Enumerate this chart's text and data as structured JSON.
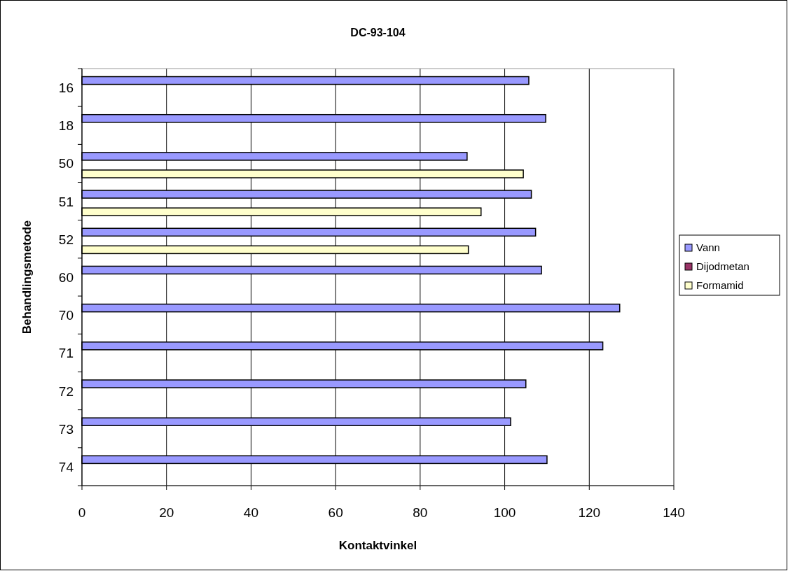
{
  "chart_data": {
    "type": "bar",
    "orientation": "horizontal",
    "title": "DC-93-104",
    "xlabel": "Kontaktvinkel",
    "ylabel": "Behandlingsmetode",
    "categories": [
      "16",
      "18",
      "50",
      "51",
      "52",
      "60",
      "70",
      "71",
      "72",
      "73",
      "74"
    ],
    "series": [
      {
        "name": "Vann",
        "color": "#9999ff",
        "values": [
          105.7,
          109.7,
          91.1,
          106.3,
          107.3,
          108.7,
          127.2,
          123.2,
          105.0,
          101.4,
          110.0
        ]
      },
      {
        "name": "Dijodmetan",
        "color": "#993366",
        "values": [
          null,
          null,
          null,
          null,
          null,
          null,
          null,
          null,
          null,
          null,
          null
        ]
      },
      {
        "name": "Formamid",
        "color": "#ffffcc",
        "values": [
          null,
          null,
          104.4,
          94.4,
          91.4,
          null,
          null,
          null,
          null,
          null,
          null
        ]
      }
    ],
    "xlim": [
      0,
      140
    ],
    "xticks": [
      0,
      20,
      40,
      60,
      80,
      100,
      120,
      140
    ],
    "grid": "x",
    "legend": "right"
  }
}
